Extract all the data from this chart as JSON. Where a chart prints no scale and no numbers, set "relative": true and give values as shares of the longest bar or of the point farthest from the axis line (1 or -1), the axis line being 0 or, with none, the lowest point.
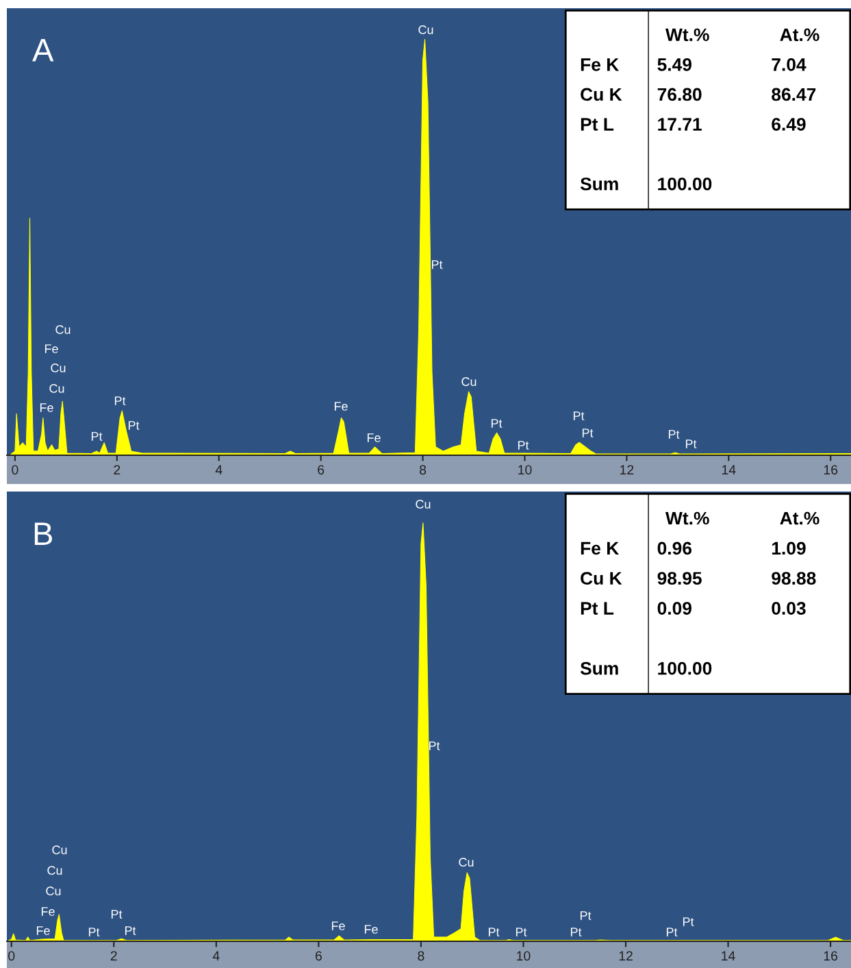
{
  "chart_data": [
    {
      "type": "area",
      "relative": true,
      "xlim": [
        -0.16,
        16.4
      ],
      "xticks": [
        0,
        2,
        4,
        6,
        8,
        10,
        12,
        14,
        16
      ],
      "x": [
        -0.1,
        0,
        0.03,
        0.08,
        0.15,
        0.22,
        0.26,
        0.29,
        0.32,
        0.36,
        0.45,
        0.52,
        0.55,
        0.59,
        0.64,
        0.72,
        0.78,
        0.86,
        0.9,
        0.93,
        0.96,
        1.02,
        1.5,
        1.6,
        1.66,
        1.75,
        1.82,
        1.98,
        2.06,
        2.1,
        2.18,
        2.28,
        2.5,
        5.3,
        5.4,
        5.5,
        6.25,
        6.35,
        6.4,
        6.45,
        6.55,
        6.95,
        7.06,
        7.2,
        7.85,
        7.92,
        8.0,
        8.04,
        8.1,
        8.18,
        8.25,
        8.4,
        8.6,
        8.75,
        8.82,
        8.9,
        8.95,
        9.05,
        9.3,
        9.38,
        9.45,
        9.52,
        9.6,
        10.9,
        11.0,
        11.07,
        11.3,
        11.4,
        12.85,
        12.95,
        13.05,
        16.4
      ],
      "series": [
        {
          "color": "#ffff00",
          "values": [
            0,
            0.01,
            0.1,
            0.02,
            0.03,
            0.02,
            0.2,
            0.57,
            0.2,
            0.01,
            0.01,
            0.05,
            0.09,
            0.03,
            0.01,
            0.025,
            0.012,
            0.015,
            0.1,
            0.13,
            0.09,
            0.005,
            0.004,
            0.01,
            0.005,
            0.03,
            0.005,
            0.005,
            0.09,
            0.107,
            0.06,
            0.01,
            0.005,
            0.004,
            0.01,
            0.004,
            0.005,
            0.06,
            0.09,
            0.08,
            0.005,
            0.005,
            0.02,
            0.004,
            0.006,
            0.3,
            0.95,
            1.0,
            0.85,
            0.2,
            0.02,
            0.01,
            0.02,
            0.025,
            0.1,
            0.153,
            0.14,
            0.01,
            0.005,
            0.04,
            0.054,
            0.04,
            0.005,
            0.004,
            0.025,
            0.031,
            0.01,
            0.003,
            0.003,
            0.006,
            0.003,
            0.004
          ]
        }
      ],
      "annotations": [
        "A",
        "Wt.%",
        "At.%",
        "Fe K",
        "5.49",
        "7.04",
        "Cu K",
        "76.80",
        "86.47",
        "Pt L",
        "17.71",
        "6.49",
        "Sum",
        "100.00",
        "Cu",
        "Pt",
        "Cu",
        "Fe",
        "Cu",
        "Cu",
        "Fe",
        "Pt",
        "Pt",
        "Pt",
        "Fe",
        "Fe",
        "Cu",
        "Pt",
        "Pt",
        "Pt",
        "Pt",
        "Pt",
        "Pt"
      ]
    },
    {
      "type": "area",
      "relative": true,
      "xlim": [
        -0.09,
        16.4
      ],
      "xticks": [
        0,
        2,
        4,
        6,
        8,
        10,
        12,
        14,
        16
      ],
      "x": [
        -0.09,
        0,
        0.04,
        0.08,
        0.28,
        0.32,
        0.36,
        0.6,
        0.85,
        0.9,
        0.93,
        0.98,
        1.02,
        2.05,
        2.15,
        2.25,
        5.35,
        5.42,
        5.5,
        6.3,
        6.4,
        6.5,
        7.05,
        7.85,
        7.92,
        8.0,
        8.04,
        8.1,
        8.18,
        8.25,
        8.5,
        8.65,
        8.78,
        8.84,
        8.9,
        8.95,
        9.05,
        9.15,
        9.65,
        9.72,
        9.8,
        11.4,
        11.5,
        11.7,
        15.95,
        16.1,
        16.25,
        16.4
      ],
      "series": [
        {
          "color": "#ffff00",
          "values": [
            0,
            0.005,
            0.018,
            0.003,
            0.002,
            0.01,
            0.002,
            0.005,
            0.006,
            0.05,
            0.064,
            0.02,
            0.002,
            0.002,
            0.006,
            0.002,
            0.003,
            0.01,
            0.003,
            0.003,
            0.013,
            0.003,
            0.004,
            0.004,
            0.3,
            0.95,
            1.0,
            0.85,
            0.2,
            0.01,
            0.01,
            0.02,
            0.03,
            0.12,
            0.164,
            0.15,
            0.01,
            0.002,
            0.002,
            0.004,
            0.002,
            0.002,
            0.003,
            0.002,
            0.002,
            0.01,
            0.002,
            0.002
          ]
        }
      ],
      "annotations": [
        "B",
        "Wt.%",
        "At.%",
        "Fe K",
        "0.96",
        "1.09",
        "Cu K",
        "98.95",
        "98.88",
        "Pt L",
        "0.09",
        "0.03",
        "Sum",
        "100.00",
        "Cu",
        "Pt",
        "Cu",
        "Cu",
        "Cu",
        "Fe",
        "Fe",
        "Pt",
        "Pt",
        "Pt",
        "Fe",
        "Fe",
        "Cu",
        "Pt",
        "Pt",
        "Pt",
        "Pt",
        "Pt",
        "Pt"
      ]
    }
  ]
}
